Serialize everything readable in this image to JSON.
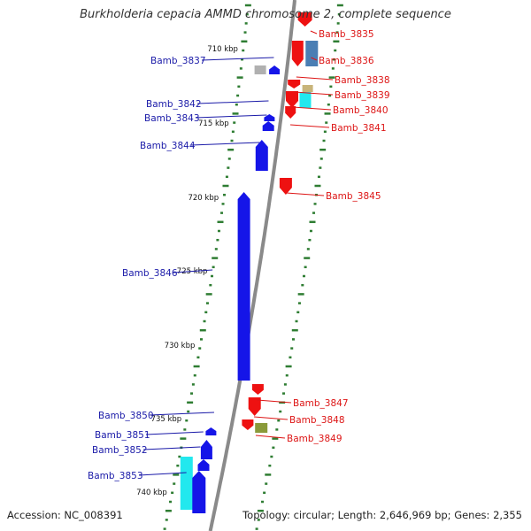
{
  "title": "Burkholderia cepacia AMMD chromosome 2, complete sequence",
  "footer": {
    "accession": "Accession: NC_008391",
    "topology": "Topology: circular; Length: 2,646,969 bp; Genes: 2,355"
  },
  "colors": {
    "forward_gene": "#1515e8",
    "reverse_gene": "#ee1111",
    "cyan_gene": "#22e8ee",
    "steel_gene": "#4a7eb4",
    "olive_gene": "#8a9a3a",
    "tan_gene": "#c8b47a",
    "grey_gene": "#b0b0b0",
    "tick": "#2e7d32",
    "backbone": "#8a8a8a",
    "forward_label": "#1a1aa8",
    "reverse_label": "#dd1515"
  },
  "scale_labels": [
    "710 kbp",
    "715 kbp",
    "720 kbp",
    "725 kbp",
    "730 kbp",
    "735 kbp",
    "740 kbp"
  ],
  "genes": [
    {
      "label": "Bamb_3835",
      "strand": "reverse"
    },
    {
      "label": "Bamb_3836",
      "strand": "reverse"
    },
    {
      "label": "Bamb_3837",
      "strand": "forward"
    },
    {
      "label": "Bamb_3838",
      "strand": "reverse"
    },
    {
      "label": "Bamb_3839",
      "strand": "reverse"
    },
    {
      "label": "Bamb_3840",
      "strand": "reverse"
    },
    {
      "label": "Bamb_3841",
      "strand": "reverse"
    },
    {
      "label": "Bamb_3842",
      "strand": "forward"
    },
    {
      "label": "Bamb_3843",
      "strand": "forward"
    },
    {
      "label": "Bamb_3844",
      "strand": "forward"
    },
    {
      "label": "Bamb_3845",
      "strand": "reverse"
    },
    {
      "label": "Bamb_3846",
      "strand": "forward"
    },
    {
      "label": "Bamb_3847",
      "strand": "reverse"
    },
    {
      "label": "Bamb_3848",
      "strand": "reverse"
    },
    {
      "label": "Bamb_3849",
      "strand": "reverse"
    },
    {
      "label": "Bamb_3850",
      "strand": "forward"
    },
    {
      "label": "Bamb_3851",
      "strand": "forward"
    },
    {
      "label": "Bamb_3852",
      "strand": "forward"
    },
    {
      "label": "Bamb_3853",
      "strand": "forward"
    }
  ]
}
